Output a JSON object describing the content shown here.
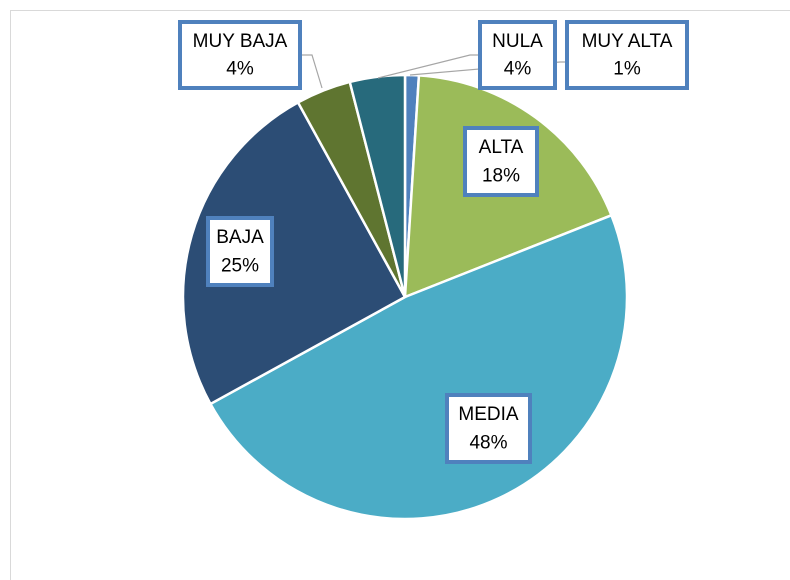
{
  "chart_data": {
    "type": "pie",
    "categories": [
      "MUY ALTA",
      "ALTA",
      "MEDIA",
      "BAJA",
      "MUY BAJA",
      "NULA"
    ],
    "values": [
      1,
      18,
      48,
      25,
      4,
      4
    ],
    "value_labels": [
      "1%",
      "18%",
      "48%",
      "25%",
      "4%",
      "4%"
    ],
    "colors": [
      "#4F81BD",
      "#9BBB59",
      "#4BACC6",
      "#2C4D75",
      "#5F7530",
      "#276A7C"
    ]
  }
}
